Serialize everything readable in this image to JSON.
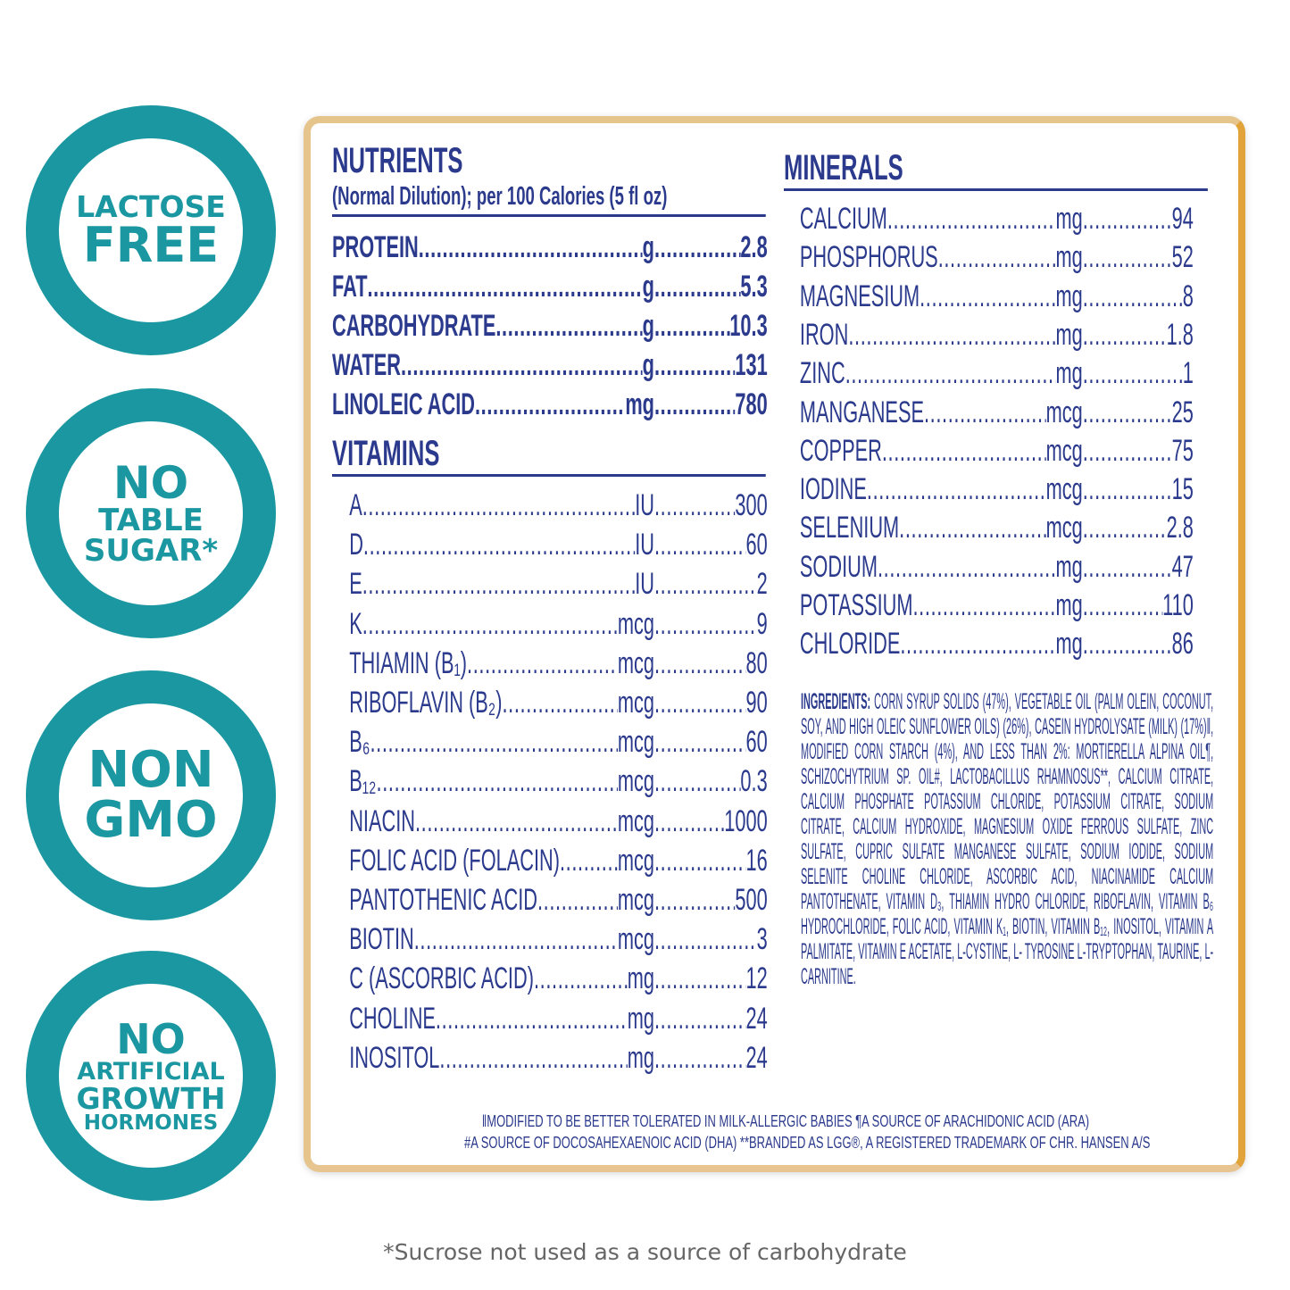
{
  "badges": [
    {
      "lines": [
        "LACTOSE",
        "FREE"
      ]
    },
    {
      "lines": [
        "NO",
        "TABLE",
        "SUGAR*"
      ]
    },
    {
      "lines": [
        "NON",
        "GMO"
      ]
    },
    {
      "lines": [
        "NO",
        "ARTIFICIAL",
        "GROWTH",
        "HORMONES"
      ]
    }
  ],
  "nutrients": {
    "title": "NUTRIENTS",
    "subtitle": "(Normal Dilution); per 100 Calories (5 fl oz)",
    "items": [
      {
        "name": "PROTEIN",
        "unit": "g",
        "value": "2.8"
      },
      {
        "name": "FAT",
        "unit": "g",
        "value": "5.3"
      },
      {
        "name": "CARBOHYDRATE",
        "unit": "g",
        "value": "10.3"
      },
      {
        "name": "WATER",
        "unit": "g",
        "value": "131"
      },
      {
        "name": "LINOLEIC ACID",
        "unit": "mg",
        "value": "780"
      }
    ]
  },
  "vitamins": {
    "title": "VITAMINS",
    "items": [
      {
        "name": "A",
        "unit": "IU",
        "value": "300"
      },
      {
        "name": "D",
        "unit": "IU",
        "value": "60"
      },
      {
        "name": "E",
        "unit": "IU",
        "value": "2"
      },
      {
        "name": "K",
        "unit": "mcg",
        "value": "9"
      },
      {
        "name": "THIAMIN (B₁)",
        "unit": "mcg",
        "value": "80"
      },
      {
        "name": "RIBOFLAVIN (B₂)",
        "unit": "mcg",
        "value": "90"
      },
      {
        "name": "B₆",
        "unit": "mcg",
        "value": "60"
      },
      {
        "name": "B₁₂",
        "unit": "mcg",
        "value": "0.3"
      },
      {
        "name": "NIACIN",
        "unit": "mcg",
        "value": "1000"
      },
      {
        "name": "FOLIC ACID (FOLACIN)",
        "unit": "mcg",
        "value": "16"
      },
      {
        "name": "PANTOTHENIC ACID",
        "unit": "mcg",
        "value": "500"
      },
      {
        "name": "BIOTIN",
        "unit": "mcg",
        "value": "3"
      },
      {
        "name": "C (ASCORBIC ACID)",
        "unit": "mg",
        "value": "12"
      },
      {
        "name": "CHOLINE",
        "unit": "mg",
        "value": "24"
      },
      {
        "name": "INOSITOL",
        "unit": "mg",
        "value": "24"
      }
    ]
  },
  "minerals": {
    "title": "MINERALS",
    "items": [
      {
        "name": "CALCIUM",
        "unit": "mg",
        "value": "94"
      },
      {
        "name": "PHOSPHORUS",
        "unit": "mg",
        "value": "52"
      },
      {
        "name": "MAGNESIUM",
        "unit": "mg",
        "value": "8"
      },
      {
        "name": "IRON",
        "unit": "mg",
        "value": "1.8"
      },
      {
        "name": "ZINC",
        "unit": "mg",
        "value": "1"
      },
      {
        "name": "MANGANESE",
        "unit": "mcg",
        "value": "25"
      },
      {
        "name": "COPPER",
        "unit": "mcg",
        "value": "75"
      },
      {
        "name": "IODINE",
        "unit": "mcg",
        "value": "15"
      },
      {
        "name": "SELENIUM",
        "unit": "mcg",
        "value": "2.8"
      },
      {
        "name": "SODIUM",
        "unit": "mg",
        "value": "47"
      },
      {
        "name": "POTASSIUM",
        "unit": "mg",
        "value": "110"
      },
      {
        "name": "CHLORIDE",
        "unit": "mg",
        "value": "86"
      }
    ]
  },
  "ingredients": {
    "label": "INGREDIENTS:",
    "text": "CORN SYRUP SOLIDS (47%), VEGETABLE OIL (PALM OLEIN, COCONUT, SOY, AND HIGH OLEIC SUNFLOWER OILS) (26%), CASEIN HYDROLYSATE (MILK) (17%)‖, MODIFIED CORN STARCH (4%), AND LESS THAN 2%: MORTIERELLA ALPINA OIL¶, SCHIZOCHYTRIUM SP. OIL#, LACTOBACILLUS RHAMNOSUS**, CALCIUM CITRATE, CALCIUM PHOSPHATE POTASSIUM CHLORIDE, POTASSIUM CITRATE, SODIUM CITRATE, CALCIUM HYDROXIDE, MAGNESIUM OXIDE FERROUS SULFATE, ZINC SULFATE, CUPRIC SULFATE MANGANESE SULFATE, SODIUM IODIDE, SODIUM SELENITE CHOLINE CHLORIDE, ASCORBIC ACID, NIACINAMIDE CALCIUM PANTOTHENATE, VITAMIN D₃, THIAMIN HYDRO CHLORIDE, RIBOFLAVIN, VITAMIN B₆ HYDROCHLORIDE, FOLIC ACID, VITAMIN K₁, BIOTIN, VITAMIN B₁₂, INOSITOL, VITAMIN A PALMITATE, VITAMIN E ACETATE, L-CYSTINE, L- TYROSINE L-TRYPTOPHAN, TAURINE, L-CARNITINE."
  },
  "footnotes": [
    "‖MODIFIED TO BE BETTER TOLERATED IN MILK-ALLERGIC BABIES ¶A SOURCE OF ARACHIDONIC ACID (ARA)",
    "#A SOURCE OF DOCOSAHEXAENOIC ACID (DHA) **BRANDED AS LGG®, A REGISTERED TRADEMARK OF CHR. HANSEN A/S"
  ],
  "bottom_note": "*Sucrose not used as a source of carbohydrate",
  "colors": {
    "teal": "#1a97a0",
    "navy": "#2b3a8c",
    "gold_border": "#e2a33a",
    "note_gray": "#666666"
  }
}
